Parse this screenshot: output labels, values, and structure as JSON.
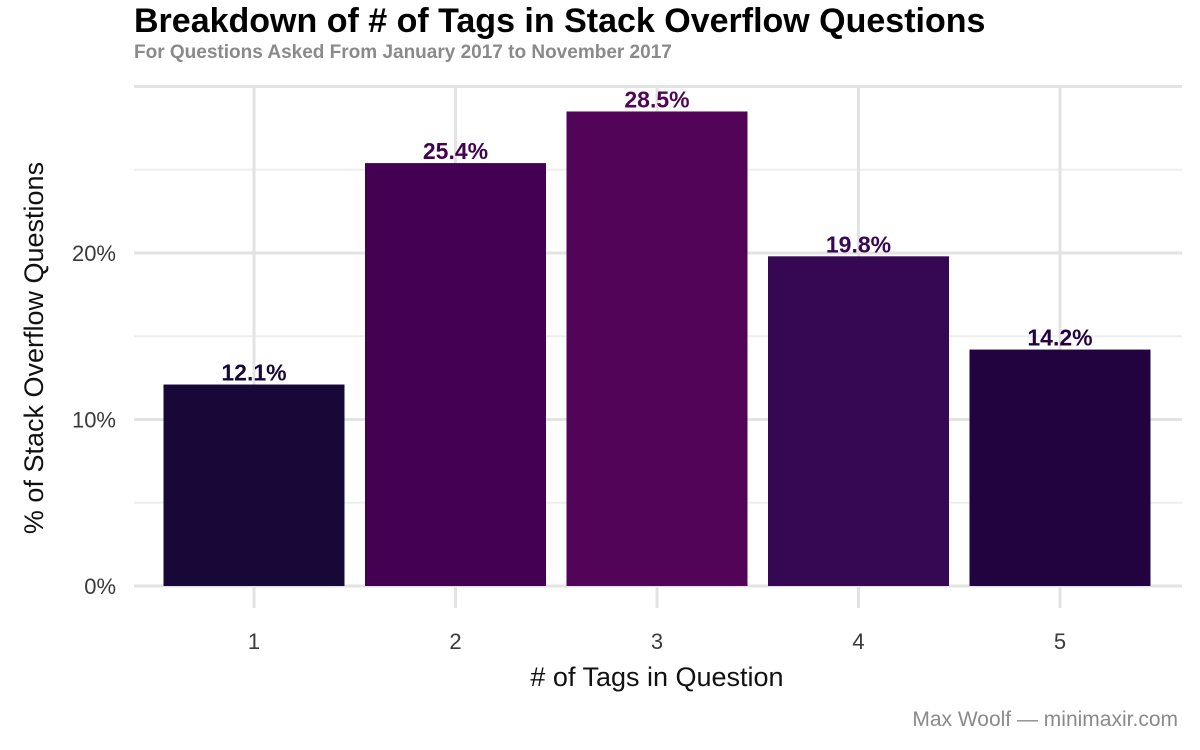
{
  "chart_data": {
    "type": "bar",
    "title": "Breakdown of # of Tags in Stack Overflow Questions",
    "subtitle": "For Questions Asked From January 2017 to November 2017",
    "xlabel": "# of Tags in Question",
    "ylabel": "% of Stack Overflow Questions",
    "categories": [
      "1",
      "2",
      "3",
      "4",
      "5"
    ],
    "values": [
      12.1,
      25.4,
      28.5,
      19.8,
      14.2
    ],
    "value_labels": [
      "12.1%",
      "25.4%",
      "28.5%",
      "19.8%",
      "14.2%"
    ],
    "colors": [
      "#170838",
      "#440154",
      "#510458",
      "#360752",
      "#220340"
    ],
    "y_ticks": [
      0,
      10,
      20
    ],
    "y_tick_labels": [
      "0%",
      "10%",
      "20%"
    ],
    "ylim": [
      0,
      30
    ],
    "grid": true,
    "legend": "none"
  },
  "caption": "Max Woolf — minimaxir.com"
}
